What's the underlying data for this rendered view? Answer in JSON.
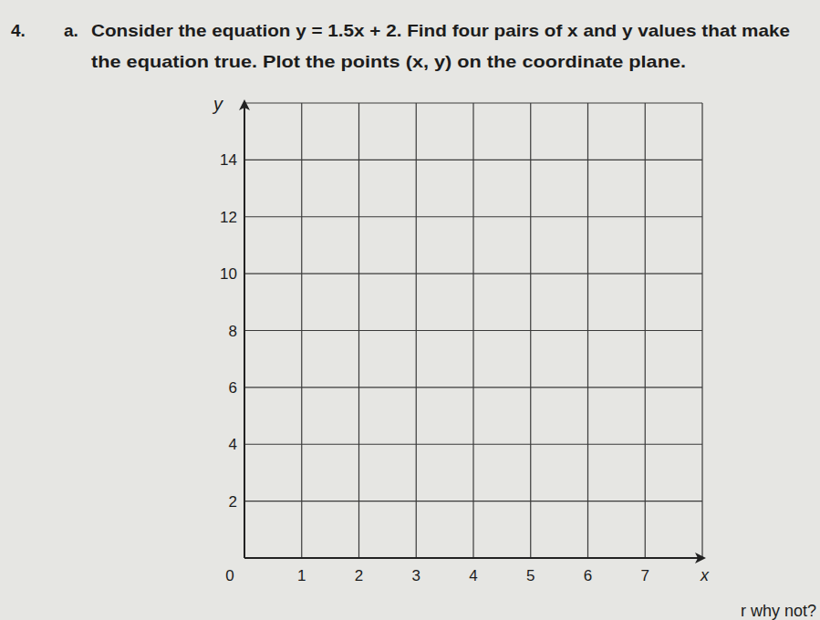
{
  "question": {
    "number": "4.",
    "part": "a.",
    "lines": [
      "Consider the equation y = 1.5x + 2. Find four pairs of x and y values that make",
      "the equation true. Plot the points (x, y) on the coordinate plane."
    ]
  },
  "chart_data": {
    "type": "scatter",
    "x": [],
    "values": [],
    "xlabel": "x",
    "ylabel": "y",
    "xlim": [
      0,
      8
    ],
    "xticks": [
      0,
      1,
      2,
      3,
      4,
      5,
      6,
      7
    ],
    "ylim": [
      0,
      16
    ],
    "yticks": [
      2,
      4,
      6,
      8,
      10,
      12,
      14
    ],
    "grid": true
  },
  "footer": "r why not?"
}
